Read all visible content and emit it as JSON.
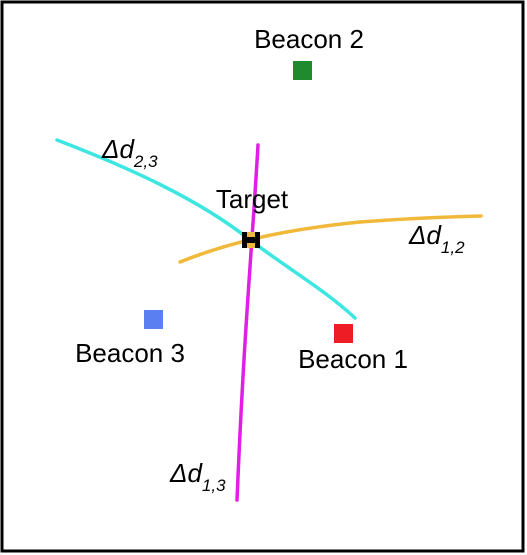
{
  "colors": {
    "frame": "#000000",
    "beacon_1": "#ee1c25",
    "beacon_2": "#1f8a2e",
    "beacon_3": "#5a7ff0",
    "target": "#000000",
    "curve_d12": "#f0b93a",
    "curve_d23": "#3de6e0",
    "curve_d13": "#e01ee6"
  },
  "beacons": [
    {
      "id": "beacon-1",
      "label": "Beacon 1"
    },
    {
      "id": "beacon-2",
      "label": "Beacon 2"
    },
    {
      "id": "beacon-3",
      "label": "Beacon 3"
    }
  ],
  "target": {
    "label": "Target"
  },
  "curves": {
    "d12": {
      "main": "Δd",
      "sub": "1,2"
    },
    "d23": {
      "main": "Δd",
      "sub": "2,3"
    },
    "d13": {
      "main": "Δd",
      "sub": "1,3"
    }
  }
}
